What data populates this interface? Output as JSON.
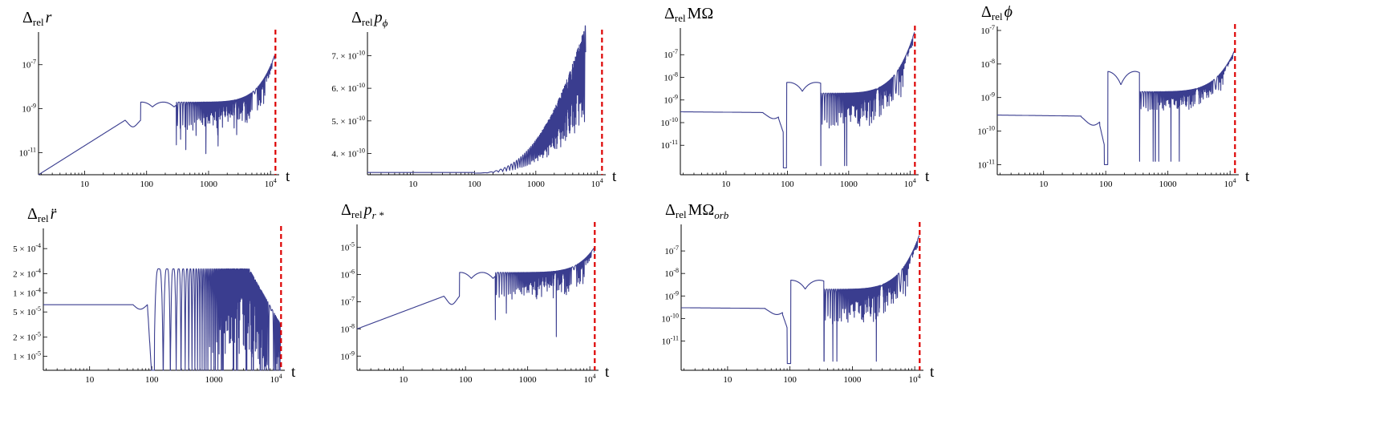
{
  "chart_data": [
    {
      "id": "p1",
      "type": "line",
      "title": "Δrel r",
      "title_parts": {
        "delta": "Δ",
        "sub": "rel",
        "symbol": "r",
        "symbol_sub": ""
      },
      "xlabel": "t",
      "xscale": "log",
      "yscale": "log",
      "xlim": [
        1.8,
        13000
      ],
      "ylim": [
        1e-12,
        2e-06
      ],
      "xticks": [
        "10",
        "100",
        "1000",
        "10^4"
      ],
      "yticks": [
        "10^-7",
        "10^-9",
        "10^-11"
      ],
      "vline_x": 12000,
      "grid": false,
      "series": [
        {
          "kind": "rlike",
          "start": 1e-12,
          "rise": 3e-10,
          "plateau": 2e-09,
          "end": 3e-07,
          "amp": 1.3
        }
      ]
    },
    {
      "id": "p2",
      "type": "line",
      "title": "Δrel pϕ",
      "title_parts": {
        "delta": "Δ",
        "sub": "rel",
        "symbol": "p",
        "symbol_sub": "ϕ"
      },
      "xlabel": "t",
      "xscale": "log",
      "yscale": "linear",
      "xlim": [
        1.8,
        13000
      ],
      "ylim": [
        3.35e-10,
        7.6e-10
      ],
      "xticks": [
        "10",
        "100",
        "1000",
        "10^4"
      ],
      "yticks": [
        "7. × 10^-10",
        "6. × 10^-10",
        "5. × 10^-10",
        "4. × 10^-10"
      ],
      "vline_x": 12000,
      "grid": false,
      "series": [
        {
          "kind": "pphi",
          "base": 3.4e-10,
          "end": 7.6e-10
        }
      ]
    },
    {
      "id": "p3",
      "type": "line",
      "title": "Δrel MΩ",
      "title_parts": {
        "delta": "Δ",
        "sub": "rel",
        "symbol": "MΩ",
        "symbol_sub": ""
      },
      "xlabel": "t",
      "xscale": "log",
      "yscale": "log",
      "xlim": [
        1.8,
        13000
      ],
      "ylim": [
        5e-13,
        1e-06
      ],
      "xticks": [
        "10",
        "100",
        "1000",
        "10^4"
      ],
      "yticks": [
        "10^-7",
        "10^-8",
        "10^-9",
        "10^-10",
        "10^-11"
      ],
      "vline_x": 12000,
      "grid": false,
      "series": [
        {
          "kind": "flatdip",
          "flat": 3e-10,
          "dip_x": 90,
          "hump": 6e-09,
          "plateau": 2e-09,
          "end": 1e-06,
          "amp": 1.6
        }
      ]
    },
    {
      "id": "p4",
      "type": "line",
      "title": "Δrel ϕ",
      "title_parts": {
        "delta": "Δ",
        "sub": "rel",
        "symbol": "ϕ",
        "symbol_sub": ""
      },
      "xlabel": "t",
      "xscale": "log",
      "yscale": "log",
      "xlim": [
        1.8,
        13000
      ],
      "ylim": [
        5e-12,
        1e-07
      ],
      "xticks": [
        "10",
        "100",
        "1000",
        "10^4"
      ],
      "yticks": [
        "10^-7",
        "10^-8",
        "10^-9",
        "10^-10",
        "10^-11"
      ],
      "vline_x": 12000,
      "grid": false,
      "series": [
        {
          "kind": "flatdip",
          "flat": 3e-10,
          "dip_x": 100,
          "hump": 6e-09,
          "plateau": 1.5e-09,
          "end": 2.5e-08,
          "amp": 0.6
        }
      ]
    },
    {
      "id": "p5",
      "type": "line",
      "title": "Δrel r̈",
      "title_parts": {
        "delta": "Δ",
        "sub": "rel",
        "symbol": "r̈",
        "symbol_sub": ""
      },
      "xlabel": "t",
      "xscale": "log",
      "yscale": "log",
      "xlim": [
        1.8,
        13000
      ],
      "ylim": [
        6e-06,
        0.0009
      ],
      "xticks": [
        "10",
        "100",
        "1000",
        "10^4"
      ],
      "yticks": [
        "5 × 10^-4",
        "2 × 10^-4",
        "1 × 10^-4",
        "5 × 10^-5",
        "2 × 10^-5",
        "1 × 10^-5"
      ],
      "vline_x": 12000,
      "grid": false,
      "series": [
        {
          "kind": "rddot",
          "flat": 6.5e-05,
          "dip_x": 100,
          "top": 0.00024
        }
      ]
    },
    {
      "id": "p6",
      "type": "line",
      "title": "Δrel pr*",
      "title_parts": {
        "delta": "Δ",
        "sub": "rel",
        "symbol": "p",
        "symbol_sub": "r *"
      },
      "xlabel": "t",
      "xscale": "log",
      "yscale": "log",
      "xlim": [
        1.8,
        13000
      ],
      "ylim": [
        3e-10,
        5e-05
      ],
      "xticks": [
        "10",
        "100",
        "1000",
        "10^4"
      ],
      "yticks": [
        "10^-5",
        "10^-6",
        "10^-7",
        "10^-8",
        "10^-9"
      ],
      "vline_x": 12000,
      "grid": false,
      "series": [
        {
          "kind": "rlike",
          "start": 1e-08,
          "rise": 1.6e-07,
          "plateau": 1.2e-06,
          "end": 1e-05,
          "amp": 1.0
        }
      ]
    },
    {
      "id": "p7",
      "type": "line",
      "title": "Δrel MΩorb",
      "title_parts": {
        "delta": "Δ",
        "sub": "rel",
        "symbol": "MΩ",
        "symbol_sub": "orb"
      },
      "xlabel": "t",
      "xscale": "log",
      "yscale": "log",
      "xlim": [
        1.8,
        13000
      ],
      "ylim": [
        5e-13,
        1e-06
      ],
      "xticks": [
        "10",
        "100",
        "1000",
        "10^4"
      ],
      "yticks": [
        "10^-7",
        "10^-8",
        "10^-9",
        "10^-10",
        "10^-11"
      ],
      "vline_x": 12000,
      "grid": false,
      "series": [
        {
          "kind": "flatdip",
          "flat": 3e-10,
          "dip_x": 95,
          "hump": 5e-09,
          "plateau": 2e-09,
          "end": 5e-07,
          "amp": 1.6
        }
      ]
    }
  ]
}
